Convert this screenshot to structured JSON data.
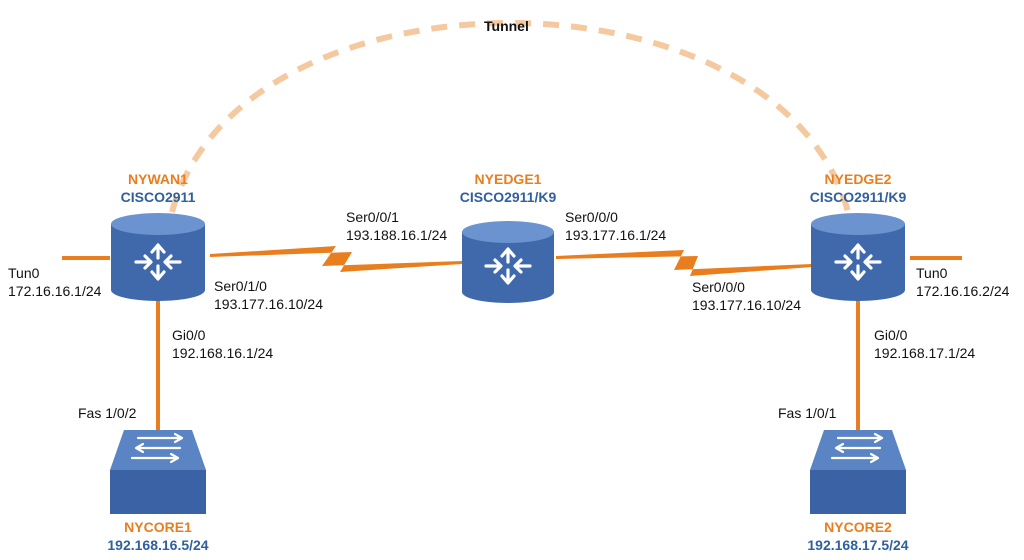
{
  "diagram": {
    "tunnel_label": "Tunnel",
    "colors": {
      "link": "#e87e1e",
      "tunnel": "#f5c9a0",
      "device_fill": "#4a74b5",
      "device_dark": "#2f5290",
      "device_top": "#5b85c6",
      "name_orange": "#e87e1e",
      "name_blue": "#2f5f9e"
    },
    "nodes": {
      "nywan1": {
        "name": "NYWAN1",
        "model": "CISCO2911",
        "icon": "router-icon"
      },
      "nyedge1": {
        "name": "NYEDGE1",
        "model": "CISCO2911/K9",
        "icon": "router-icon"
      },
      "nyedge2": {
        "name": "NYEDGE2",
        "model": "CISCO2911/K9",
        "icon": "router-icon"
      },
      "nycore1": {
        "name": "NYCORE1",
        "address": "192.168.16.5/24",
        "icon": "switch-icon"
      },
      "nycore2": {
        "name": "NYCORE2",
        "address": "192.168.17.5/24",
        "icon": "switch-icon"
      }
    },
    "interfaces": {
      "nywan1_tun": {
        "name": "Tun0",
        "ip": "172.16.16.1/24"
      },
      "nywan1_ser": {
        "name": "Ser0/1/0",
        "ip": "193.177.16.10/24"
      },
      "nywan1_gi": {
        "name": "Gi0/0",
        "ip": "192.168.16.1/24"
      },
      "nycore1_fas": {
        "name": "Fas 1/0/2"
      },
      "nyedge1_ser1": {
        "name": "Ser0/0/1",
        "ip": "193.188.16.1/24"
      },
      "nyedge1_ser0": {
        "name": "Ser0/0/0",
        "ip": "193.177.16.1/24"
      },
      "nyedge2_ser": {
        "name": "Ser0/0/0",
        "ip": "193.177.16.10/24"
      },
      "nyedge2_tun": {
        "name": "Tun0",
        "ip": "172.16.16.2/24"
      },
      "nyedge2_gi": {
        "name": "Gi0/0",
        "ip": "192.168.17.1/24"
      },
      "nycore2_fas": {
        "name": "Fas 1/0/1"
      }
    }
  }
}
